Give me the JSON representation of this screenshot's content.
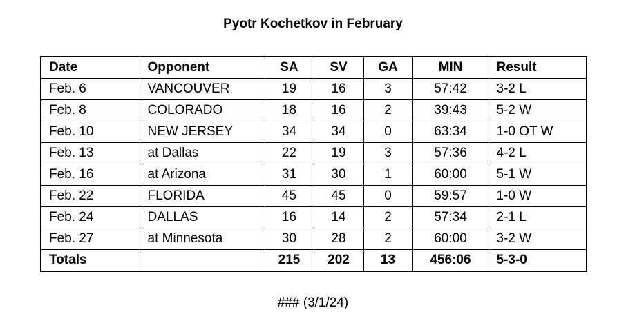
{
  "title": "Pyotr Kochetkov in February",
  "table": {
    "headers": [
      "Date",
      "Opponent",
      "SA",
      "SV",
      "GA",
      "MIN",
      "Result"
    ],
    "rows": [
      [
        "Feb. 6",
        "VANCOUVER",
        "19",
        "16",
        "3",
        "57:42",
        "3-2 L"
      ],
      [
        "Feb. 8",
        "COLORADO",
        "18",
        "16",
        "2",
        "39:43",
        "5-2 W"
      ],
      [
        "Feb. 10",
        "NEW JERSEY",
        "34",
        "34",
        "0",
        "63:34",
        "1-0 OT W"
      ],
      [
        "Feb. 13",
        "at Dallas",
        "22",
        "19",
        "3",
        "57:36",
        "4-2 L"
      ],
      [
        "Feb. 16",
        "at Arizona",
        "31",
        "30",
        "1",
        "60:00",
        "5-1 W"
      ],
      [
        "Feb. 22",
        "FLORIDA",
        "45",
        "45",
        "0",
        "59:57",
        "1-0 W"
      ],
      [
        "Feb. 24",
        "DALLAS",
        "16",
        "14",
        "2",
        "57:34",
        "2-1 L"
      ],
      [
        "Feb. 27",
        "at Minnesota",
        "30",
        "28",
        "2",
        "60:00",
        "3-2 W"
      ]
    ],
    "totals": [
      "Totals",
      "",
      "215",
      "202",
      "13",
      "456:06",
      "5-3-0"
    ]
  },
  "footer": "### (3/1/24)"
}
